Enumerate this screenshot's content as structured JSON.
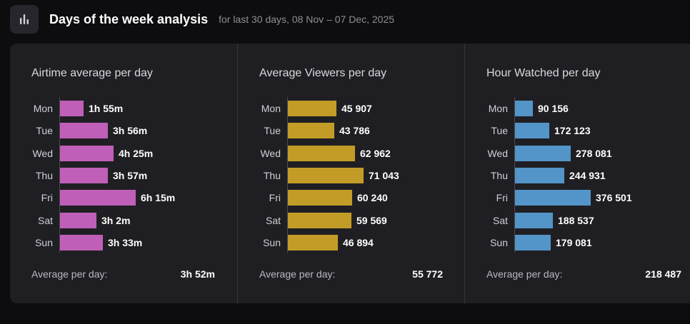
{
  "header": {
    "title": "Days of the week analysis",
    "subtitle": "for last 30 days, 08 Nov – 07 Dec, 2025",
    "icon": "bar-chart-icon"
  },
  "chart_data": [
    {
      "type": "bar",
      "title": "Airtime average per day",
      "categories": [
        "Mon",
        "Tue",
        "Wed",
        "Thu",
        "Fri",
        "Sat",
        "Sun"
      ],
      "values": [
        115,
        236,
        265,
        237,
        375,
        182,
        213
      ],
      "value_labels": [
        "1h 55m",
        "3h 56m",
        "4h 25m",
        "3h 57m",
        "6h 15m",
        "3h 2m",
        "3h 33m"
      ],
      "unit": "minutes",
      "color": "#c05fb7",
      "average_label": "Average per day:",
      "average_value": "3h 52m"
    },
    {
      "type": "bar",
      "title": "Average Viewers per day",
      "categories": [
        "Mon",
        "Tue",
        "Wed",
        "Thu",
        "Fri",
        "Sat",
        "Sun"
      ],
      "values": [
        45907,
        43786,
        62962,
        71043,
        60240,
        59569,
        46894
      ],
      "value_labels": [
        "45 907",
        "43 786",
        "62 962",
        "71 043",
        "60 240",
        "59 569",
        "46 894"
      ],
      "color": "#c29c27",
      "average_label": "Average per day:",
      "average_value": "55 772"
    },
    {
      "type": "bar",
      "title": "Hour Watched per day",
      "categories": [
        "Mon",
        "Tue",
        "Wed",
        "Thu",
        "Fri",
        "Sat",
        "Sun"
      ],
      "values": [
        90156,
        172123,
        278081,
        244931,
        376501,
        188537,
        179081
      ],
      "value_labels": [
        "90 156",
        "172 123",
        "278 081",
        "244 931",
        "376 501",
        "188 537",
        "179 081"
      ],
      "color": "#5395c8",
      "average_label": "Average per day:",
      "average_value": "218 487"
    }
  ]
}
